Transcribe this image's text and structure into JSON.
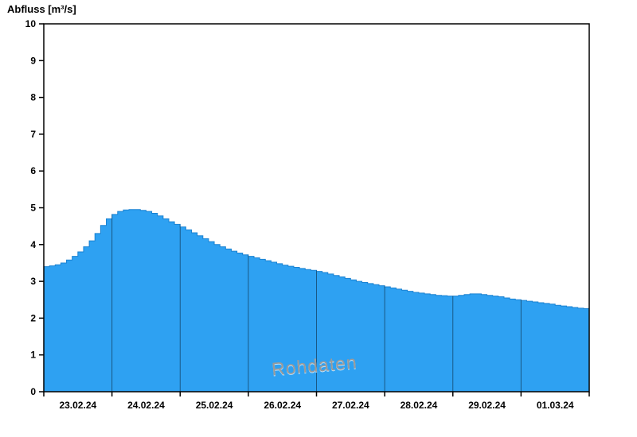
{
  "chart": {
    "title": "Abfluss [m³/s]",
    "watermark": "Rohdaten"
  },
  "chart_data": {
    "type": "area",
    "step": true,
    "title": "Abfluss [m³/s]",
    "ylabel": "Abfluss [m³/s]",
    "xlabel": "",
    "ylim": [
      0,
      10
    ],
    "y_ticks": [
      0,
      1,
      2,
      3,
      4,
      5,
      6,
      7,
      8,
      9,
      10
    ],
    "x_tick_labels": [
      "23.02.24",
      "24.02.24",
      "25.02.24",
      "26.02.24",
      "27.02.24",
      "28.02.24",
      "29.02.24",
      "01.03.24"
    ],
    "points_per_day": 12,
    "interval_hours": 2,
    "grid_vertical_day_lines": true,
    "legend": "none",
    "fill_color": "#2ea1f2",
    "line_color": "#1a82d2",
    "grid_color": "rgba(0,0,0,0.45)",
    "axis_color": "#000000",
    "values": [
      3.4,
      3.42,
      3.45,
      3.5,
      3.58,
      3.68,
      3.8,
      3.94,
      4.1,
      4.3,
      4.52,
      4.7,
      4.82,
      4.9,
      4.94,
      4.95,
      4.95,
      4.93,
      4.9,
      4.85,
      4.78,
      4.7,
      4.62,
      4.55,
      4.48,
      4.4,
      4.32,
      4.24,
      4.16,
      4.08,
      4.0,
      3.94,
      3.88,
      3.82,
      3.77,
      3.72,
      3.68,
      3.64,
      3.6,
      3.56,
      3.52,
      3.48,
      3.44,
      3.41,
      3.38,
      3.35,
      3.32,
      3.3,
      3.27,
      3.24,
      3.2,
      3.16,
      3.12,
      3.08,
      3.04,
      3.0,
      2.97,
      2.94,
      2.91,
      2.88,
      2.85,
      2.82,
      2.79,
      2.76,
      2.73,
      2.7,
      2.68,
      2.66,
      2.64,
      2.62,
      2.61,
      2.6,
      2.6,
      2.62,
      2.64,
      2.66,
      2.66,
      2.64,
      2.62,
      2.6,
      2.58,
      2.55,
      2.52,
      2.5,
      2.48,
      2.46,
      2.44,
      2.42,
      2.4,
      2.38,
      2.35,
      2.33,
      2.31,
      2.29,
      2.27,
      2.26
    ]
  }
}
